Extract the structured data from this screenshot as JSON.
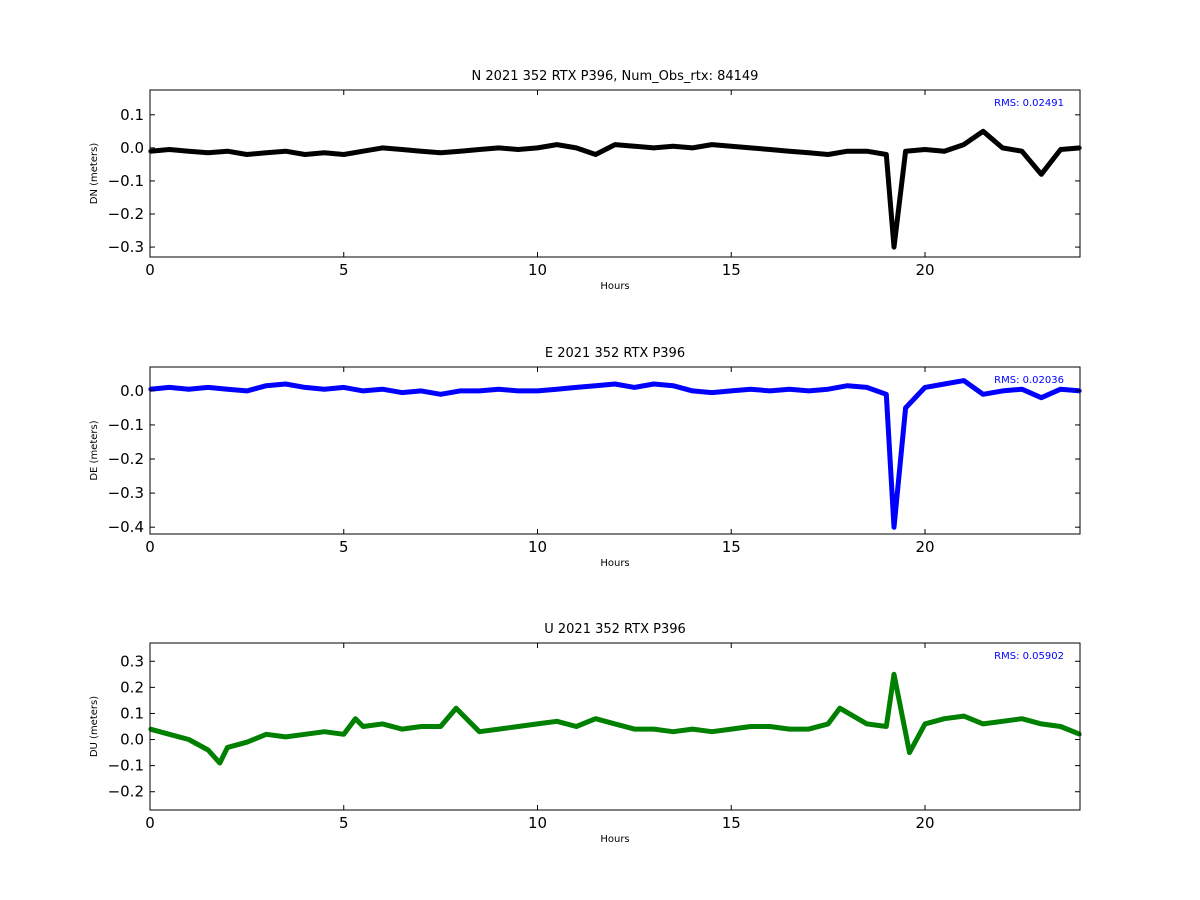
{
  "chart_data": [
    {
      "type": "scatter",
      "title": "N 2021 352 RTX  P396, Num_Obs_rtx: 84149",
      "xlabel": "Hours",
      "ylabel": "DN (meters)",
      "xlim": [
        0,
        24
      ],
      "ylim": [
        -0.33,
        0.175
      ],
      "xticks": [
        0,
        5,
        10,
        15,
        20
      ],
      "yticks": [
        0.1,
        0.0,
        -0.1,
        -0.2,
        -0.3
      ],
      "ytick_labels": [
        "0.1",
        "0.0",
        "−0.1",
        "−0.2",
        "−0.3"
      ],
      "color": "#000000",
      "rms_label": "RMS:  0.02491",
      "rms_color": "#0000ff",
      "grid": false,
      "series": [
        {
          "x": [
            0,
            0.5,
            1,
            1.5,
            2,
            2.5,
            3,
            3.5,
            4,
            4.5,
            5,
            5.5,
            6,
            6.5,
            7,
            7.5,
            8,
            8.5,
            9,
            9.5,
            10,
            10.5,
            11,
            11.5,
            12,
            12.5,
            13,
            13.5,
            14,
            14.5,
            15,
            15.5,
            16,
            16.5,
            17,
            17.5,
            18,
            18.5,
            19,
            19.2,
            19.5,
            20,
            20.5,
            21,
            21.5,
            22,
            22.5,
            23,
            23.5,
            24
          ],
          "y": [
            -0.01,
            -0.005,
            -0.01,
            -0.015,
            -0.01,
            -0.02,
            -0.015,
            -0.01,
            -0.02,
            -0.015,
            -0.02,
            -0.01,
            0.0,
            -0.005,
            -0.01,
            -0.015,
            -0.01,
            -0.005,
            0.0,
            -0.005,
            0.0,
            0.01,
            0.0,
            -0.02,
            0.01,
            0.005,
            0.0,
            0.005,
            0.0,
            0.01,
            0.005,
            0.0,
            -0.005,
            -0.01,
            -0.015,
            -0.02,
            -0.01,
            -0.01,
            -0.02,
            -0.3,
            -0.01,
            -0.005,
            -0.01,
            0.01,
            0.05,
            0.0,
            -0.01,
            -0.08,
            -0.005,
            0.0
          ]
        }
      ]
    },
    {
      "type": "scatter",
      "title": "E 2021 352 RTX  P396",
      "xlabel": "Hours",
      "ylabel": "DE (meters)",
      "xlim": [
        0,
        24
      ],
      "ylim": [
        -0.42,
        0.07
      ],
      "xticks": [
        0,
        5,
        10,
        15,
        20
      ],
      "yticks": [
        0.0,
        -0.1,
        -0.2,
        -0.3,
        -0.4
      ],
      "ytick_labels": [
        "0.0",
        "−0.1",
        "−0.2",
        "−0.3",
        "−0.4"
      ],
      "color": "#0000ff",
      "rms_label": "RMS:  0.02036",
      "rms_color": "#0000ff",
      "grid": false,
      "series": [
        {
          "x": [
            0,
            0.5,
            1,
            1.5,
            2,
            2.5,
            3,
            3.5,
            4,
            4.5,
            5,
            5.5,
            6,
            6.5,
            7,
            7.5,
            8,
            8.5,
            9,
            9.5,
            10,
            10.5,
            11,
            11.5,
            12,
            12.5,
            13,
            13.5,
            14,
            14.5,
            15,
            15.5,
            16,
            16.5,
            17,
            17.5,
            18,
            18.5,
            19,
            19.2,
            19.5,
            20,
            20.5,
            21,
            21.5,
            22,
            22.5,
            23,
            23.5,
            24
          ],
          "y": [
            0.005,
            0.01,
            0.005,
            0.01,
            0.005,
            0.0,
            0.015,
            0.02,
            0.01,
            0.005,
            0.01,
            0.0,
            0.005,
            -0.005,
            0.0,
            -0.01,
            0.0,
            0.0,
            0.005,
            0.0,
            0.0,
            0.005,
            0.01,
            0.015,
            0.02,
            0.01,
            0.02,
            0.015,
            0.0,
            -0.005,
            0.0,
            0.005,
            0.0,
            0.005,
            0.0,
            0.005,
            0.015,
            0.01,
            -0.01,
            -0.4,
            -0.05,
            0.01,
            0.02,
            0.03,
            -0.01,
            0.0,
            0.005,
            -0.02,
            0.005,
            0.0
          ]
        }
      ]
    },
    {
      "type": "scatter",
      "title": "U 2021 352 RTX  P396",
      "xlabel": "Hours",
      "ylabel": "DU (meters)",
      "xlim": [
        0,
        24
      ],
      "ylim": [
        -0.27,
        0.37
      ],
      "xticks": [
        0,
        5,
        10,
        15,
        20
      ],
      "yticks": [
        0.3,
        0.2,
        0.1,
        0.0,
        -0.1,
        -0.2
      ],
      "ytick_labels": [
        "0.3",
        "0.2",
        "0.1",
        "0.0",
        "−0.1",
        "−0.2"
      ],
      "color": "#008000",
      "rms_label": "RMS:  0.05902",
      "rms_color": "#0000ff",
      "grid": false,
      "series": [
        {
          "x": [
            0,
            0.5,
            1,
            1.5,
            1.8,
            2,
            2.5,
            3,
            3.5,
            4,
            4.5,
            5,
            5.3,
            5.5,
            6,
            6.5,
            7,
            7.5,
            7.9,
            8.5,
            9,
            9.5,
            10,
            10.5,
            11,
            11.5,
            12,
            12.5,
            13,
            13.5,
            14,
            14.5,
            15,
            15.5,
            16,
            16.5,
            17,
            17.5,
            17.8,
            18.5,
            19,
            19.2,
            19.6,
            20,
            20.5,
            21,
            21.5,
            22,
            22.5,
            23,
            23.5,
            24
          ],
          "y": [
            0.04,
            0.02,
            0.0,
            -0.04,
            -0.09,
            -0.03,
            -0.01,
            0.02,
            0.01,
            0.02,
            0.03,
            0.02,
            0.08,
            0.05,
            0.06,
            0.04,
            0.05,
            0.05,
            0.12,
            0.03,
            0.04,
            0.05,
            0.06,
            0.07,
            0.05,
            0.08,
            0.06,
            0.04,
            0.04,
            0.03,
            0.04,
            0.03,
            0.04,
            0.05,
            0.05,
            0.04,
            0.04,
            0.06,
            0.12,
            0.06,
            0.05,
            0.25,
            -0.05,
            0.06,
            0.08,
            0.09,
            0.06,
            0.07,
            0.08,
            0.06,
            0.05,
            0.02
          ]
        }
      ]
    }
  ]
}
